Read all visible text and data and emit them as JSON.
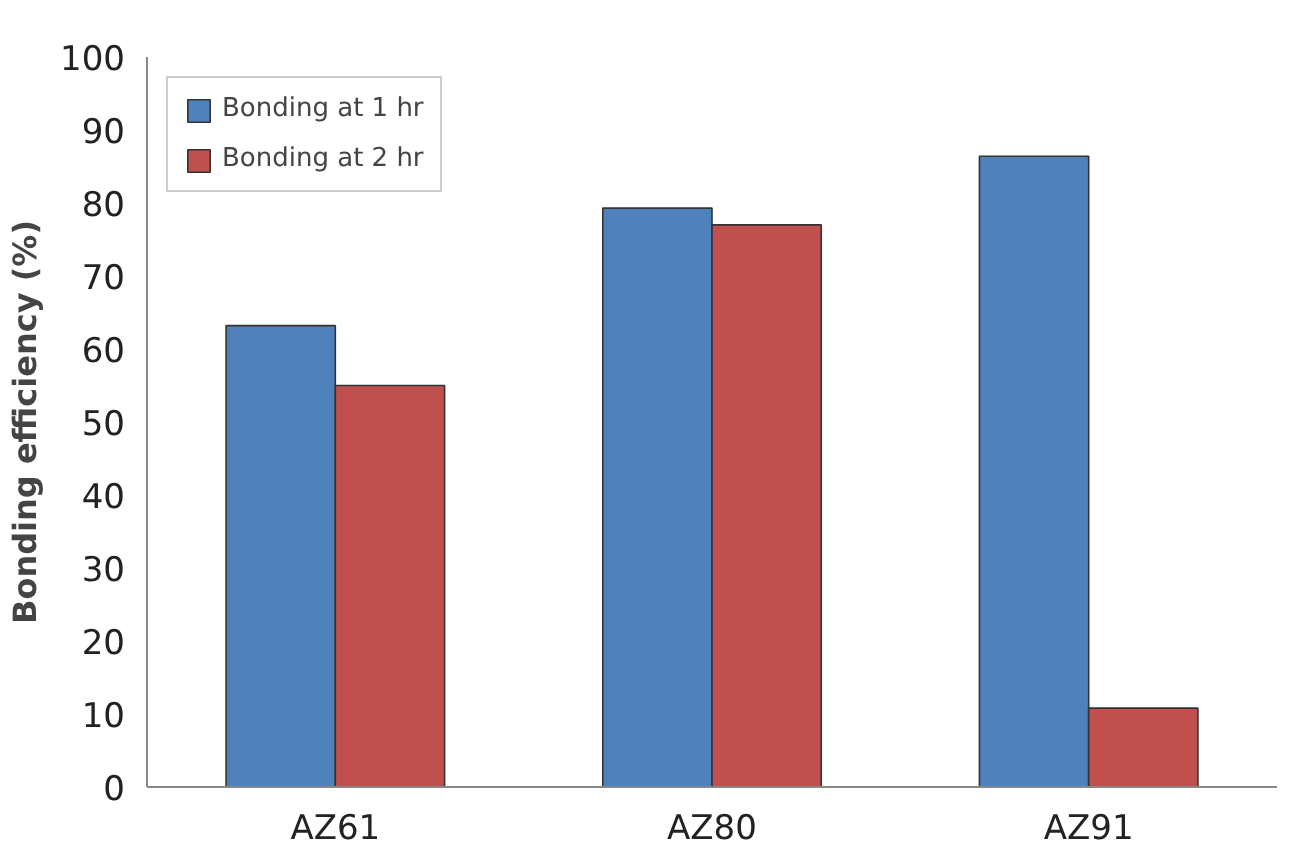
{
  "chart_data": {
    "type": "bar",
    "ylabel": "Bonding efficiency (%)",
    "categories": [
      "AZ61",
      "AZ80",
      "AZ91"
    ],
    "series": [
      {
        "name": "Bonding at 1 hr",
        "color": "#4f81bd",
        "values": [
          63.2,
          79.3,
          86.4
        ]
      },
      {
        "name": "Bonding at 2 hr",
        "color": "#c0504d",
        "values": [
          55,
          77,
          10.8
        ]
      }
    ],
    "ylim": [
      0,
      100
    ],
    "yticks": [
      0,
      10,
      20,
      30,
      40,
      50,
      60,
      70,
      80,
      90,
      100
    ],
    "grid": false,
    "legend": "top left"
  }
}
